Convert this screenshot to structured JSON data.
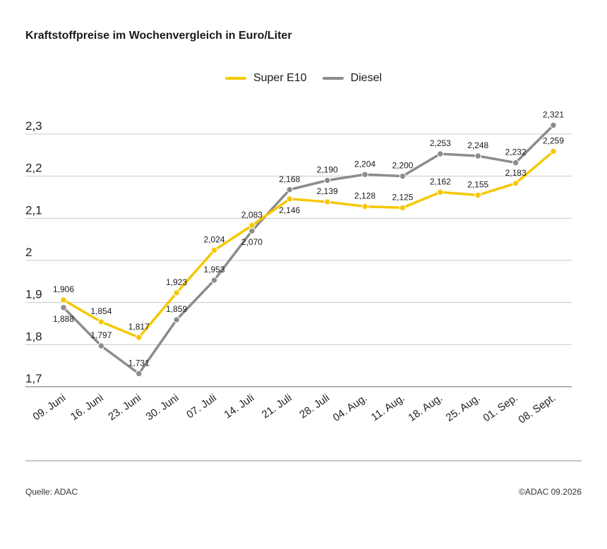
{
  "title": "Kraftstoffpreise im Wochenvergleich in Euro/Liter",
  "footer": {
    "source": "Quelle: ADAC",
    "copyright": "©ADAC 09.2026"
  },
  "chart_data": {
    "type": "line",
    "title": "Kraftstoffpreise im Wochenvergleich in Euro/Liter",
    "xlabel": "",
    "ylabel": "",
    "categories": [
      "09. Juni",
      "16. Juni",
      "23. Juni",
      "30. Juni",
      "07. Juli",
      "14. Juli",
      "21. Juli",
      "28. Juli",
      "04. Aug.",
      "11. Aug.",
      "18. Aug.",
      "25. Aug.",
      "01. Sep.",
      "08. Sept."
    ],
    "ylim": [
      1.7,
      2.3
    ],
    "yticks": [
      1.7,
      1.8,
      1.9,
      2.0,
      2.1,
      2.2,
      2.3
    ],
    "ytick_labels": [
      "1,7",
      "1,8",
      "1,9",
      "2",
      "2,1",
      "2,2",
      "2,3"
    ],
    "grid": true,
    "legend_position": "top-center",
    "series": [
      {
        "name": "Super E10",
        "color": "#f5c800",
        "values": [
          1.906,
          1.854,
          1.817,
          1.923,
          2.024,
          2.083,
          2.146,
          2.139,
          2.128,
          2.125,
          2.162,
          2.155,
          2.183,
          2.259
        ],
        "labels": [
          "1,906",
          "1,854",
          "1,817",
          "1,923",
          "2,024",
          "2,083",
          "2,146",
          "2,139",
          "2,128",
          "2,125",
          "2,162",
          "2,155",
          "2,183",
          "2,259"
        ]
      },
      {
        "name": "Diesel",
        "color": "#8c8c8c",
        "values": [
          1.888,
          1.797,
          1.731,
          1.859,
          1.953,
          2.07,
          2.168,
          2.19,
          2.204,
          2.2,
          2.253,
          2.248,
          2.232,
          2.321
        ],
        "labels": [
          "1,888",
          "1,797",
          "1,731",
          "1,859",
          "1,953",
          "2,070",
          "2,168",
          "2,190",
          "2,204",
          "2,200",
          "2,253",
          "2,248",
          "2,232",
          "2,321"
        ]
      }
    ]
  }
}
